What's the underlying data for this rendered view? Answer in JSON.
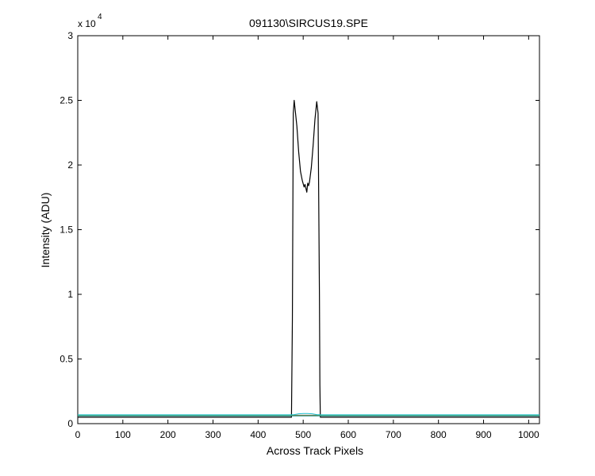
{
  "chart_data": {
    "type": "line",
    "title": "091130\\SIRCUS19.SPE",
    "xlabel": "Across Track Pixels",
    "ylabel": "Intensity (ADU)",
    "y_multiplier_base": "x 10",
    "y_multiplier_exponent": "4",
    "xlim": [
      0,
      1024
    ],
    "ylim": [
      0,
      30000
    ],
    "xticks": [
      0,
      100,
      200,
      300,
      400,
      500,
      600,
      700,
      800,
      900,
      1000
    ],
    "yticks": [
      0,
      5000,
      10000,
      15000,
      20000,
      25000,
      30000
    ],
    "xtick_labels": [
      "0",
      "100",
      "200",
      "300",
      "400",
      "500",
      "600",
      "700",
      "800",
      "900",
      "1000"
    ],
    "ytick_labels": [
      "0",
      "0.5",
      "1",
      "1.5",
      "2",
      "2.5",
      "3"
    ],
    "grid": false,
    "legend": "none",
    "series": [
      {
        "color": "#000000",
        "x": [
          0,
          100,
          200,
          300,
          400,
          470,
          474,
          476,
          478,
          480,
          483,
          486,
          490,
          494,
          498,
          502,
          504,
          506,
          508,
          510,
          512,
          514,
          518,
          522,
          526,
          530,
          533,
          536,
          537,
          538,
          540,
          600,
          700,
          800,
          900,
          1024
        ],
        "y": [
          500,
          500,
          500,
          500,
          500,
          500,
          500,
          8000,
          24000,
          25000,
          24000,
          23000,
          21000,
          19500,
          18800,
          18300,
          18500,
          18200,
          17900,
          18600,
          18400,
          18700,
          19800,
          21500,
          23500,
          24900,
          24000,
          10000,
          3000,
          500,
          500,
          500,
          500,
          500,
          500,
          500
        ]
      },
      {
        "color": "#2b6cb0",
        "x": [
          0,
          1024
        ],
        "y": [
          600,
          600
        ]
      },
      {
        "color": "#c0392b",
        "x": [
          0,
          1024
        ],
        "y": [
          650,
          650
        ]
      },
      {
        "color": "#27ae60",
        "x": [
          0,
          1024
        ],
        "y": [
          620,
          620
        ]
      },
      {
        "color": "#17becf",
        "x": [
          0,
          470,
          480,
          490,
          500,
          510,
          520,
          530,
          540,
          1024
        ],
        "y": [
          680,
          680,
          700,
          760,
          780,
          780,
          760,
          700,
          680,
          680
        ]
      }
    ]
  }
}
